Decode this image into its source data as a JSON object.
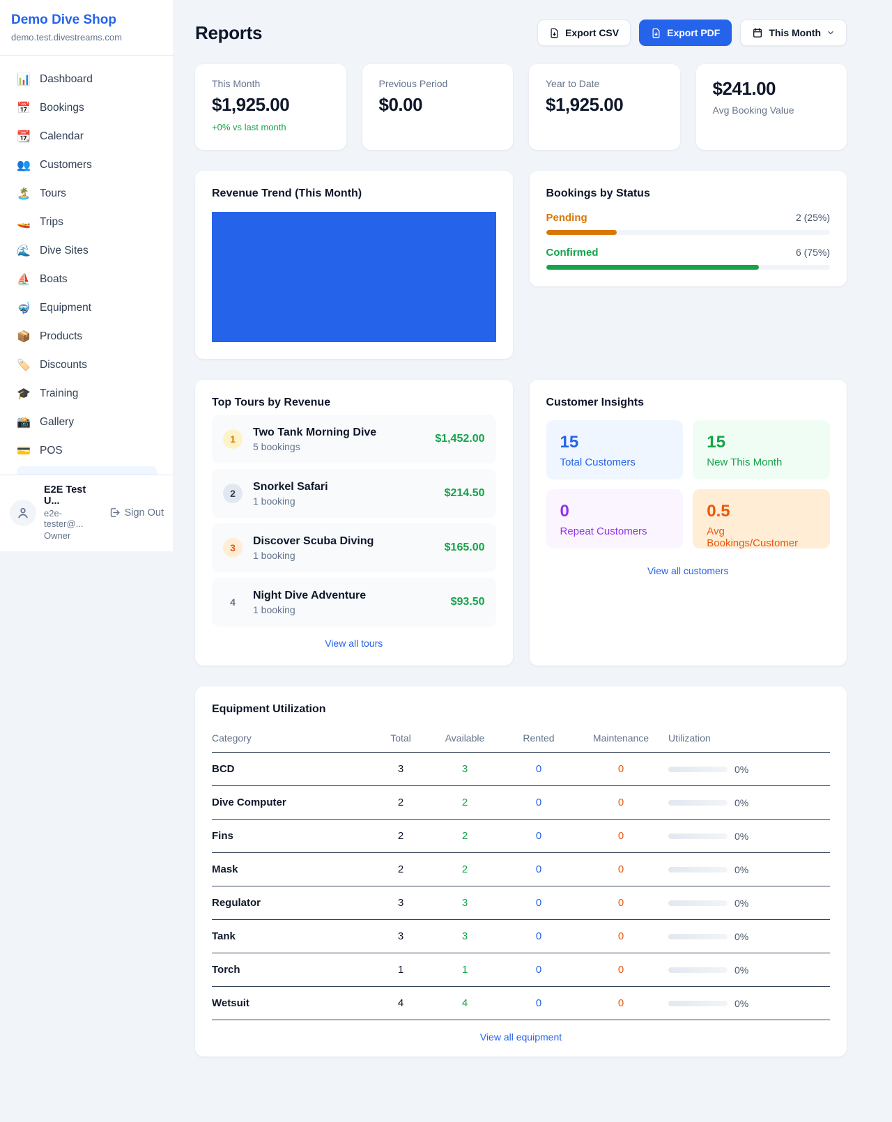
{
  "app": {
    "name": "Demo Dive Shop",
    "domain": "demo.test.divestreams.com"
  },
  "sidebar": {
    "items": [
      {
        "label": "Dashboard",
        "icon": "📊",
        "icon_name": "bar-chart-icon"
      },
      {
        "label": "Bookings",
        "icon": "📅",
        "icon_name": "calendar-icon"
      },
      {
        "label": "Calendar",
        "icon": "📆",
        "icon_name": "tear-off-calendar-icon"
      },
      {
        "label": "Customers",
        "icon": "👥",
        "icon_name": "people-icon"
      },
      {
        "label": "Tours",
        "icon": "🏝️",
        "icon_name": "island-icon"
      },
      {
        "label": "Trips",
        "icon": "🚤",
        "icon_name": "speedboat-icon"
      },
      {
        "label": "Dive Sites",
        "icon": "🌊",
        "icon_name": "wave-icon"
      },
      {
        "label": "Boats",
        "icon": "⛵",
        "icon_name": "sailboat-icon"
      },
      {
        "label": "Equipment",
        "icon": "🤿",
        "icon_name": "diving-mask-icon"
      },
      {
        "label": "Products",
        "icon": "📦",
        "icon_name": "package-icon"
      },
      {
        "label": "Discounts",
        "icon": "🏷️",
        "icon_name": "tag-icon"
      },
      {
        "label": "Training",
        "icon": "🎓",
        "icon_name": "graduation-cap-icon"
      },
      {
        "label": "Gallery",
        "icon": "📸",
        "icon_name": "camera-icon"
      },
      {
        "label": "POS",
        "icon": "💳",
        "icon_name": "credit-card-icon"
      }
    ],
    "user": {
      "name": "E2E Test U...",
      "email": "e2e-tester@...",
      "role": "Owner",
      "sign_out_label": "Sign Out"
    }
  },
  "header": {
    "title": "Reports",
    "export_csv_label": "Export CSV",
    "export_pdf_label": "Export PDF",
    "period_label": "This Month"
  },
  "stats": {
    "this_month": {
      "label": "This Month",
      "value": "$1,925.00",
      "delta": "+0% vs last month"
    },
    "previous_period": {
      "label": "Previous Period",
      "value": "$0.00"
    },
    "year_to_date": {
      "label": "Year to Date",
      "value": "$1,925.00"
    },
    "avg_booking": {
      "value": "$241.00",
      "label": "Avg Booking Value"
    }
  },
  "revenue_trend": {
    "title": "Revenue Trend (This Month)"
  },
  "chart_data": {
    "type": "bar",
    "title": "Revenue Trend (This Month)",
    "categories": [
      "This Month"
    ],
    "values": [
      1925.0
    ],
    "color": "#2563eb",
    "note": "single full-height solid bar fills entire plot area, no axes or gridlines"
  },
  "bookings_by_status": {
    "title": "Bookings by Status",
    "rows": [
      {
        "label": "Pending",
        "count_text": "2 (25%)",
        "pct": 25,
        "theme": "pending"
      },
      {
        "label": "Confirmed",
        "count_text": "6 (75%)",
        "pct": 75,
        "theme": "confirmed"
      }
    ]
  },
  "top_tours": {
    "title": "Top Tours by Revenue",
    "link_label": "View all tours",
    "rows": [
      {
        "rank": "1",
        "theme": "rank-amber",
        "name": "Two Tank Morning Dive",
        "bookings": "5 bookings",
        "revenue": "$1,452.00"
      },
      {
        "rank": "2",
        "theme": "rank-gray",
        "name": "Snorkel Safari",
        "bookings": "1 booking",
        "revenue": "$214.50"
      },
      {
        "rank": "3",
        "theme": "rank-orange",
        "name": "Discover Scuba Diving",
        "bookings": "1 booking",
        "revenue": "$165.00"
      },
      {
        "rank": "4",
        "theme": "rank-plain",
        "name": "Night Dive Adventure",
        "bookings": "1 booking",
        "revenue": "$93.50"
      }
    ]
  },
  "customer_insights": {
    "title": "Customer Insights",
    "link_label": "View all customers",
    "tiles": [
      {
        "value": "15",
        "label": "Total Customers",
        "theme": "blue"
      },
      {
        "value": "15",
        "label": "New This Month",
        "theme": "green"
      },
      {
        "value": "0",
        "label": "Repeat Customers",
        "theme": "purple"
      },
      {
        "value": "0.5",
        "label": "Avg Bookings/Customer",
        "theme": "orange"
      }
    ]
  },
  "equipment": {
    "title": "Equipment Utilization",
    "link_label": "View all equipment",
    "columns": [
      "Category",
      "Total",
      "Available",
      "Rented",
      "Maintenance",
      "Utilization"
    ],
    "rows": [
      {
        "category": "BCD",
        "total": "3",
        "available": "3",
        "rented": "0",
        "maintenance": "0",
        "utilization": "0%"
      },
      {
        "category": "Dive Computer",
        "total": "2",
        "available": "2",
        "rented": "0",
        "maintenance": "0",
        "utilization": "0%"
      },
      {
        "category": "Fins",
        "total": "2",
        "available": "2",
        "rented": "0",
        "maintenance": "0",
        "utilization": "0%"
      },
      {
        "category": "Mask",
        "total": "2",
        "available": "2",
        "rented": "0",
        "maintenance": "0",
        "utilization": "0%"
      },
      {
        "category": "Regulator",
        "total": "3",
        "available": "3",
        "rented": "0",
        "maintenance": "0",
        "utilization": "0%"
      },
      {
        "category": "Tank",
        "total": "3",
        "available": "3",
        "rented": "0",
        "maintenance": "0",
        "utilization": "0%"
      },
      {
        "category": "Torch",
        "total": "1",
        "available": "1",
        "rented": "0",
        "maintenance": "0",
        "utilization": "0%"
      },
      {
        "category": "Wetsuit",
        "total": "4",
        "available": "4",
        "rented": "0",
        "maintenance": "0",
        "utilization": "0%"
      }
    ]
  }
}
